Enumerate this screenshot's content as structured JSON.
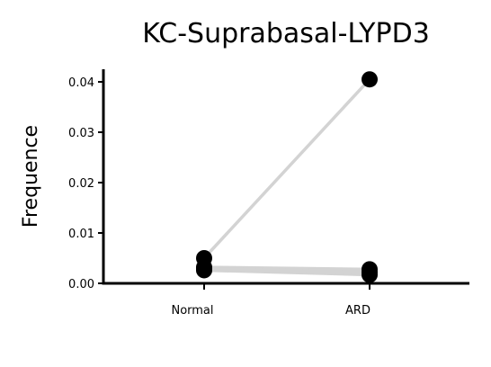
{
  "chart_data": {
    "type": "line",
    "title": "KC-Suprabasal-LYPD3",
    "xlabel": "",
    "ylabel": "Frequence",
    "categories": [
      "Normal",
      "ARD"
    ],
    "ylim": [
      0,
      0.04
    ],
    "yticks": [
      "0.00",
      "0.01",
      "0.02",
      "0.03",
      "0.04"
    ],
    "ytick_values": [
      0,
      0.01,
      0.02,
      0.03,
      0.04
    ],
    "grid": false,
    "series": [
      {
        "values": [
          0.005,
          0.0405
        ]
      },
      {
        "values": [
          0.0032,
          0.0028
        ]
      },
      {
        "values": [
          0.0026,
          0.0017
        ]
      },
      {
        "values": [
          0.0029,
          0.0022
        ]
      }
    ],
    "colors": {
      "line": "#d3d3d3",
      "point": "#000000"
    }
  }
}
